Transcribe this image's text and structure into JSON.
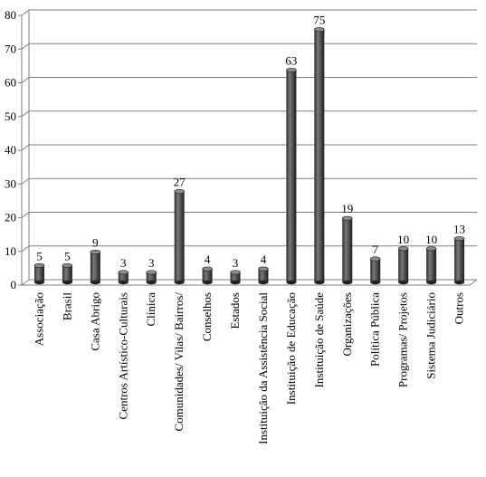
{
  "chart_data": {
    "type": "bar",
    "title": "",
    "xlabel": "",
    "ylabel": "",
    "ylim": [
      0,
      80
    ],
    "yticks": [
      0,
      10,
      20,
      30,
      40,
      50,
      60,
      70,
      80
    ],
    "grid": true,
    "style": "3d-cylinder",
    "colors": {
      "bar": "#4d4d4d",
      "bar_light": "#8a8a8a",
      "bar_dark": "#222222",
      "grid": "#7f7f7f",
      "axis": "#7f7f7f"
    },
    "categories": [
      "Associação",
      "Brasil",
      "Casa Abrigo",
      "Centros Artístico-Culturais",
      "Clínica",
      "Comunidades/ Vilas/ Bairros/",
      "Conselhos",
      "Estados",
      "Instituição da Assistência Social",
      "Instituição de Educação",
      "Instituição de Saúde",
      "Organizações",
      "Política Pública",
      "Programas/ Projetos",
      "Sistema Judiciário",
      "Outros"
    ],
    "values": [
      5,
      5,
      9,
      3,
      3,
      27,
      4,
      3,
      4,
      63,
      75,
      19,
      7,
      10,
      10,
      13
    ],
    "data_labels": [
      "5",
      "5",
      "9",
      "3",
      "3",
      "27",
      "4",
      "3",
      "4",
      "63",
      "75",
      "19",
      "7",
      "10",
      "10",
      "13"
    ]
  }
}
